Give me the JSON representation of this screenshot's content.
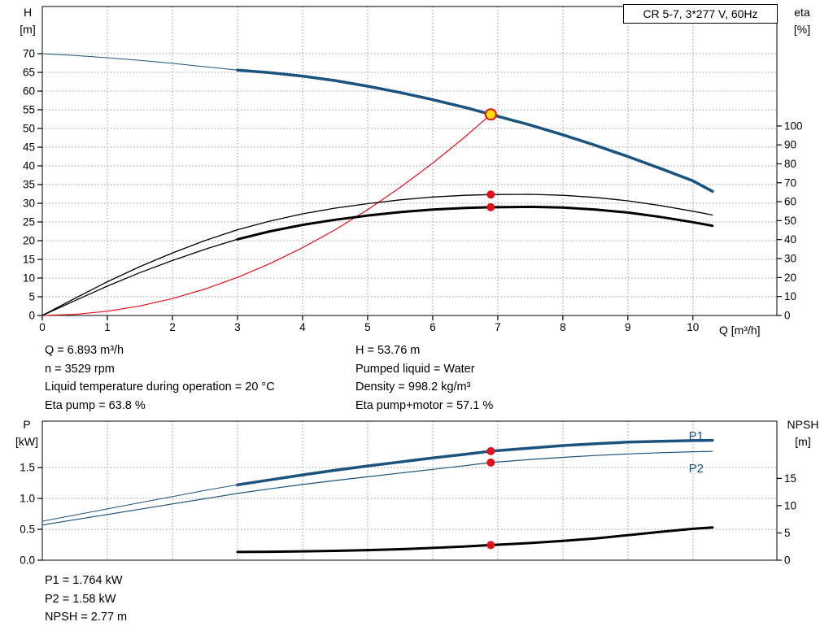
{
  "title_box": {
    "label": "CR 5-7, 3*277 V, 60Hz"
  },
  "colors": {
    "blue": "#1b537f",
    "red": "#e31019",
    "black": "#000000",
    "duty_fill": "#ffdd00",
    "grid": "#9a9a9a",
    "frame": "#000000"
  },
  "top_info": {
    "left": [
      "Q = 6.893 m³/h",
      "n = 3529 rpm",
      "Liquid temperature during operation = 20 °C",
      "Eta pump = 63.8 %"
    ],
    "right": [
      "H = 53.76 m",
      "Pumped liquid = Water",
      "Density = 998.2 kg/m³",
      "Eta pump+motor = 57.1 %"
    ]
  },
  "bottom_info": [
    "P1 = 1.764 kW",
    "P2 = 1.58 kW",
    "NPSH = 2.77 m"
  ],
  "chart_data": [
    {
      "type": "line",
      "title": "CR 5-7, 3*277 V, 60Hz",
      "x_axis": {
        "label": "Q [m³/h]",
        "min": 0,
        "max": 11.29,
        "ticks": [
          0,
          1,
          2,
          3,
          4,
          5,
          6,
          7,
          8,
          9,
          10
        ],
        "show_labels": true
      },
      "left_axis": {
        "label": [
          "H",
          "[m]"
        ],
        "min": 0,
        "max": 82.6,
        "ticks": [
          0,
          5,
          10,
          15,
          20,
          25,
          30,
          35,
          40,
          45,
          50,
          55,
          60,
          65,
          70
        ],
        "format": "int",
        "grid": true
      },
      "right_axis": {
        "label": [
          "eta",
          "[%]"
        ],
        "min": 0,
        "max": 163,
        "ticks": [
          0,
          10,
          20,
          30,
          40,
          50,
          60,
          70,
          80,
          90,
          100
        ],
        "format": "int"
      },
      "series": [
        {
          "name": "head-curve-thin",
          "axis": "left",
          "color": "blue",
          "width": 1,
          "points": [
            [
              0,
              70
            ],
            [
              0.5,
              69.5
            ],
            [
              1,
              68.9
            ],
            [
              1.5,
              68.2
            ],
            [
              2,
              67.4
            ],
            [
              2.5,
              66.5
            ],
            [
              3,
              65.6
            ]
          ]
        },
        {
          "name": "head-curve",
          "axis": "left",
          "color": "blue",
          "width": 3.5,
          "points": [
            [
              3,
              65.6
            ],
            [
              3.5,
              64.9
            ],
            [
              4,
              64.0
            ],
            [
              4.5,
              62.8
            ],
            [
              5,
              61.3
            ],
            [
              5.5,
              59.6
            ],
            [
              6,
              57.7
            ],
            [
              6.5,
              55.6
            ],
            [
              6.893,
              53.76
            ],
            [
              7.5,
              50.9
            ],
            [
              8,
              48.3
            ],
            [
              8.5,
              45.5
            ],
            [
              9,
              42.5
            ],
            [
              9.5,
              39.3
            ],
            [
              10,
              36.0
            ],
            [
              10.3,
              33.2
            ]
          ]
        },
        {
          "name": "duty-parabola",
          "axis": "left",
          "color": "red",
          "width": 1.2,
          "points": [
            [
              0,
              0
            ],
            [
              0.5,
              0.28
            ],
            [
              1,
              1.13
            ],
            [
              1.5,
              2.55
            ],
            [
              2,
              4.53
            ],
            [
              2.5,
              7.07
            ],
            [
              3,
              10.18
            ],
            [
              3.5,
              13.86
            ],
            [
              4,
              18.11
            ],
            [
              4.5,
              22.91
            ],
            [
              5,
              28.29
            ],
            [
              5.5,
              34.23
            ],
            [
              6,
              40.74
            ],
            [
              6.5,
              47.81
            ],
            [
              6.893,
              53.76
            ]
          ]
        },
        {
          "name": "eta-pump-curve",
          "axis": "right",
          "color": "black",
          "width": 1.3,
          "points": [
            [
              0,
              0
            ],
            [
              0.5,
              9
            ],
            [
              1,
              17.8
            ],
            [
              1.5,
              25.8
            ],
            [
              2,
              33
            ],
            [
              2.5,
              39.5
            ],
            [
              3,
              45.2
            ],
            [
              3.5,
              49.8
            ],
            [
              4,
              53.6
            ],
            [
              4.5,
              56.6
            ],
            [
              5,
              59
            ],
            [
              5.5,
              61
            ],
            [
              6,
              62.5
            ],
            [
              6.5,
              63.4
            ],
            [
              6.893,
              63.8
            ],
            [
              7.5,
              63.9
            ],
            [
              8,
              63.4
            ],
            [
              8.5,
              62.3
            ],
            [
              9,
              60.5
            ],
            [
              9.5,
              58
            ],
            [
              10,
              55
            ],
            [
              10.3,
              53
            ]
          ]
        },
        {
          "name": "eta-pump-motor-thin",
          "axis": "right",
          "color": "black",
          "width": 1.3,
          "points": [
            [
              0,
              0
            ],
            [
              0.5,
              7.8
            ],
            [
              1,
              15.5
            ],
            [
              1.5,
              22.6
            ],
            [
              2,
              29
            ],
            [
              2.5,
              34.9
            ],
            [
              3,
              40.2
            ]
          ]
        },
        {
          "name": "eta-pump-motor-curve",
          "axis": "right",
          "color": "black",
          "width": 3,
          "points": [
            [
              3,
              40.2
            ],
            [
              3.5,
              44.4
            ],
            [
              4,
              47.8
            ],
            [
              4.5,
              50.5
            ],
            [
              5,
              52.7
            ],
            [
              5.5,
              54.5
            ],
            [
              6,
              55.9
            ],
            [
              6.5,
              56.7
            ],
            [
              6.893,
              57.1
            ],
            [
              7.5,
              57.3
            ],
            [
              8,
              56.9
            ],
            [
              8.5,
              55.9
            ],
            [
              9,
              54.3
            ],
            [
              9.5,
              52
            ],
            [
              10,
              49.2
            ],
            [
              10.3,
              47.3
            ]
          ]
        }
      ],
      "markers": [
        {
          "name": "eta-pump-point",
          "q": 6.893,
          "v": 63.8,
          "axis": "right",
          "style": "dot"
        },
        {
          "name": "eta-pump-motor-point",
          "q": 6.893,
          "v": 57.1,
          "axis": "right",
          "style": "dot"
        },
        {
          "name": "duty-point",
          "q": 6.893,
          "v": 53.76,
          "axis": "left",
          "style": "duty"
        }
      ],
      "annotations": []
    },
    {
      "type": "line",
      "x_axis": {
        "label": "Q [m³/h]",
        "min": 0,
        "max": 11.29,
        "ticks": [
          0,
          1,
          2,
          3,
          4,
          5,
          6,
          7,
          8,
          9,
          10
        ],
        "show_labels": false
      },
      "left_axis": {
        "label": [
          "P",
          "[kW]"
        ],
        "min": 0,
        "max": 2.25,
        "ticks": [
          0,
          0.5,
          1,
          1.5
        ],
        "format": "1dp",
        "grid": true
      },
      "right_axis": {
        "label": [
          "NPSH",
          "[m]"
        ],
        "min": 0,
        "max": 25.5,
        "ticks": [
          0,
          5,
          10,
          15
        ],
        "format": "int"
      },
      "series": [
        {
          "name": "p1-curve-thin",
          "axis": "left",
          "color": "blue",
          "width": 1,
          "points": [
            [
              0,
              0.63
            ],
            [
              0.5,
              0.73
            ],
            [
              1,
              0.83
            ],
            [
              1.5,
              0.93
            ],
            [
              2,
              1.03
            ],
            [
              2.5,
              1.13
            ],
            [
              3,
              1.22
            ]
          ]
        },
        {
          "name": "p1-curve",
          "axis": "left",
          "color": "blue",
          "width": 3.5,
          "points": [
            [
              3,
              1.22
            ],
            [
              3.5,
              1.3
            ],
            [
              4,
              1.38
            ],
            [
              4.5,
              1.455
            ],
            [
              5,
              1.525
            ],
            [
              5.5,
              1.59
            ],
            [
              6,
              1.655
            ],
            [
              6.5,
              1.715
            ],
            [
              6.893,
              1.764
            ],
            [
              7.5,
              1.815
            ],
            [
              8,
              1.855
            ],
            [
              8.5,
              1.885
            ],
            [
              9,
              1.91
            ],
            [
              9.5,
              1.925
            ],
            [
              10,
              1.935
            ],
            [
              10.3,
              1.94
            ]
          ]
        },
        {
          "name": "p2-curve",
          "axis": "left",
          "color": "blue",
          "width": 1.2,
          "points": [
            [
              0,
              0.57
            ],
            [
              0.5,
              0.655
            ],
            [
              1,
              0.74
            ],
            [
              1.5,
              0.825
            ],
            [
              2,
              0.91
            ],
            [
              2.5,
              0.995
            ],
            [
              3,
              1.08
            ],
            [
              3.5,
              1.155
            ],
            [
              4,
              1.225
            ],
            [
              4.5,
              1.29
            ],
            [
              5,
              1.35
            ],
            [
              5.5,
              1.41
            ],
            [
              6,
              1.47
            ],
            [
              6.5,
              1.53
            ],
            [
              6.893,
              1.58
            ],
            [
              7.5,
              1.63
            ],
            [
              8,
              1.665
            ],
            [
              8.5,
              1.695
            ],
            [
              9,
              1.72
            ],
            [
              9.5,
              1.74
            ],
            [
              10,
              1.755
            ],
            [
              10.3,
              1.76
            ]
          ]
        },
        {
          "name": "npsh-curve",
          "axis": "right",
          "color": "black",
          "width": 3,
          "points": [
            [
              3,
              1.5
            ],
            [
              3.5,
              1.55
            ],
            [
              4,
              1.62
            ],
            [
              4.5,
              1.72
            ],
            [
              5,
              1.85
            ],
            [
              5.5,
              2.02
            ],
            [
              6,
              2.25
            ],
            [
              6.5,
              2.52
            ],
            [
              6.893,
              2.77
            ],
            [
              7.5,
              3.15
            ],
            [
              8,
              3.55
            ],
            [
              8.5,
              4.0
            ],
            [
              9,
              4.6
            ],
            [
              9.5,
              5.2
            ],
            [
              10,
              5.75
            ],
            [
              10.3,
              6.0
            ]
          ]
        }
      ],
      "markers": [
        {
          "name": "p1-point",
          "q": 6.893,
          "v": 1.764,
          "axis": "left",
          "style": "dot"
        },
        {
          "name": "p2-point",
          "q": 6.893,
          "v": 1.58,
          "axis": "left",
          "style": "dot"
        },
        {
          "name": "npsh-point",
          "q": 6.893,
          "v": 2.77,
          "axis": "right",
          "style": "dot"
        }
      ],
      "annotations": [
        {
          "text": "P1",
          "q": 10.05,
          "v": 1.95,
          "color": "blue"
        },
        {
          "text": "P2",
          "q": 10.05,
          "v": 1.42,
          "color": "blue"
        }
      ]
    }
  ]
}
